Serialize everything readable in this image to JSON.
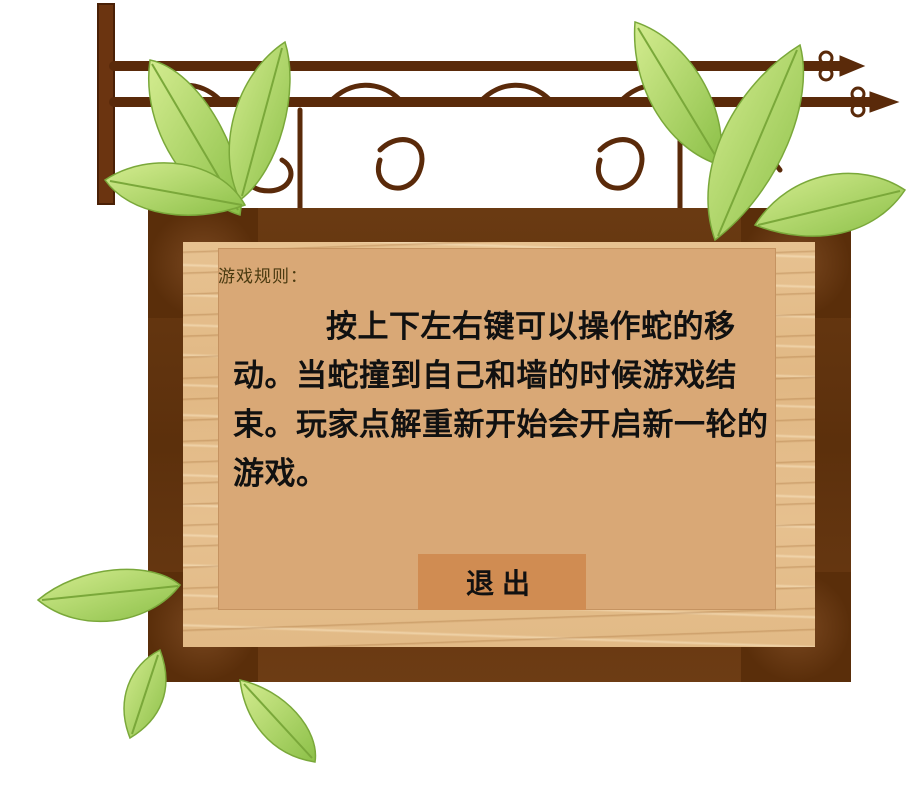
{
  "sign": {
    "title": "游戏规则：",
    "rules": "按上下左右键可以操作蛇的移动。当蛇撞到自己和墙的时候游戏结束。玩家点解重新开始会开启新一轮的游戏。",
    "exit_label": "退出"
  },
  "icons": {
    "bracket": "iron-bracket-icon",
    "leaf": "leaf-icon"
  },
  "colors": {
    "frame": "#5c300c",
    "plank": "#e3bb87",
    "panel": "#d9a876",
    "button": "#d08c52",
    "text": "#111111",
    "title_text": "#4a3a10",
    "iron": "#5a2a0a",
    "leaf": "#a9d55c"
  }
}
